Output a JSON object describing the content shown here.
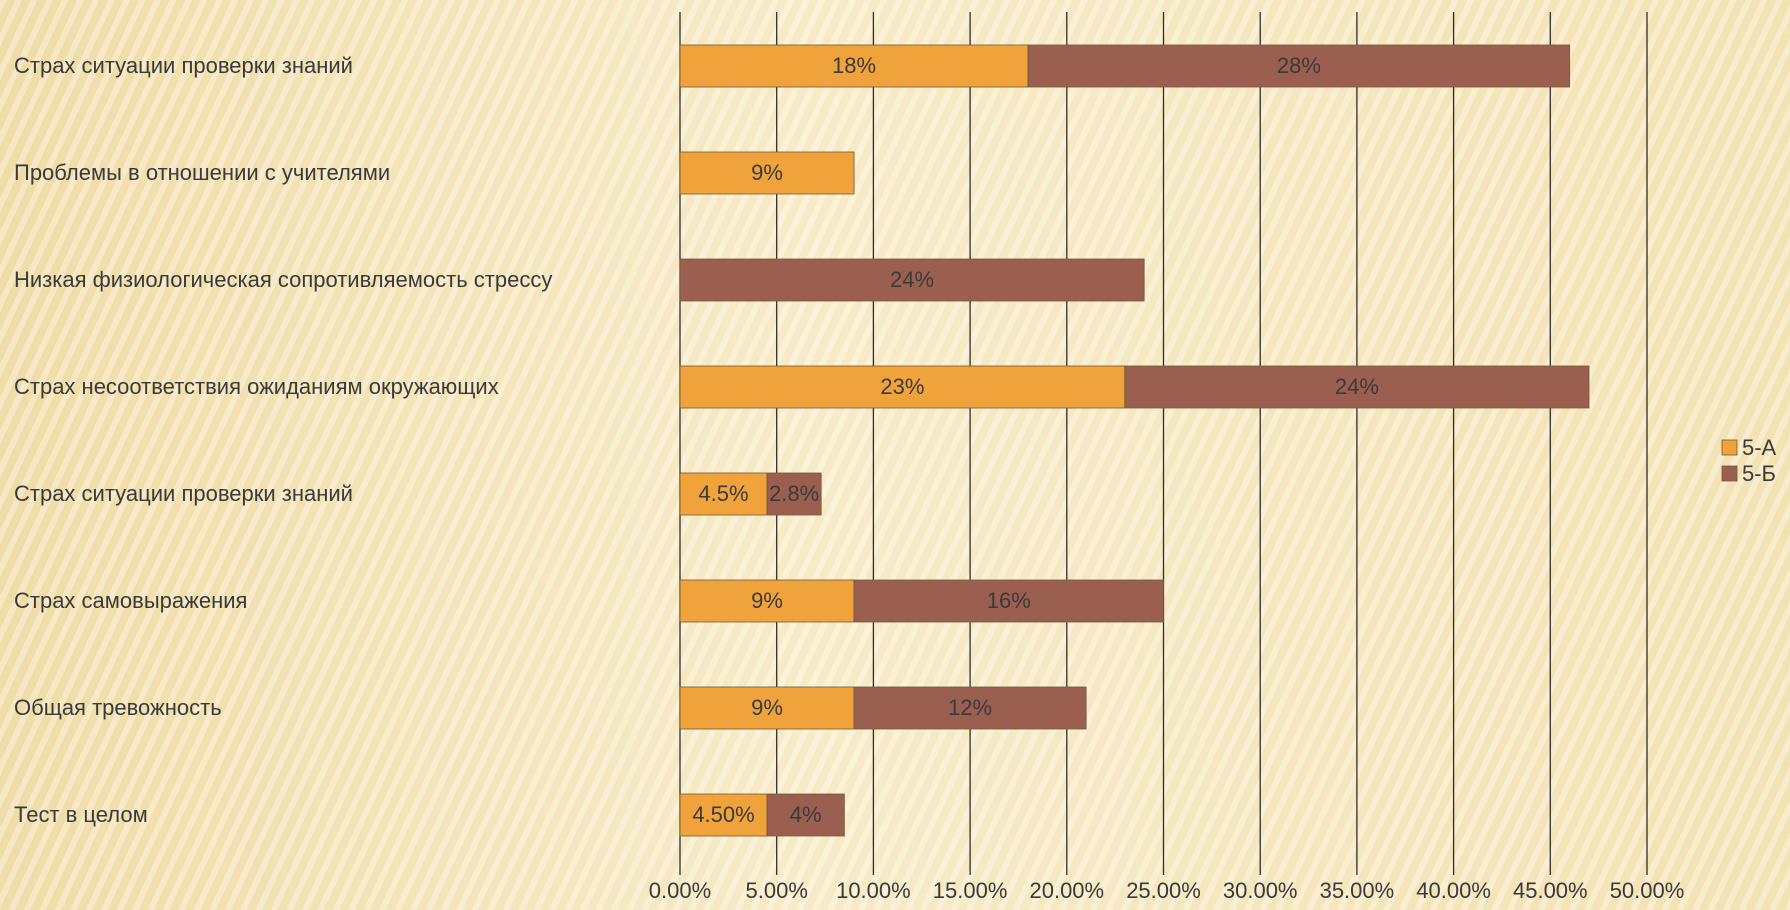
{
  "chart_data": {
    "type": "bar",
    "orientation": "horizontal",
    "stacked": true,
    "title": "",
    "xlabel": "",
    "ylabel": "",
    "xlim": [
      0,
      50
    ],
    "x_ticks": [
      "0.00%",
      "5.00%",
      "10.00%",
      "15.00%",
      "20.00%",
      "25.00%",
      "30.00%",
      "35.00%",
      "40.00%",
      "45.00%",
      "50.00%"
    ],
    "grid": true,
    "legend_position": "right",
    "categories": [
      "Страх ситуации проверки знаний",
      "Проблемы в отношении с учителями",
      "Низкая физиологическая сопротивляемость стрессу",
      "Страх несоответствия ожиданиям окружающих",
      "Страх ситуации проверки знаний",
      "Страх самовыражения",
      "Общая тревожность",
      "Тест в целом"
    ],
    "series": [
      {
        "name": "5-А",
        "color": "#f0a33a",
        "values": [
          18,
          9,
          0,
          23,
          4.5,
          9,
          9,
          4.5
        ],
        "labels": [
          "18%",
          "9%",
          "",
          "23%",
          "4.5%",
          "9%",
          "9%",
          "4.50%"
        ]
      },
      {
        "name": "5-Б",
        "color": "#9b5f4f",
        "values": [
          28,
          0,
          24,
          24,
          2.8,
          16,
          12,
          4
        ],
        "labels": [
          "28%",
          "",
          "24%",
          "24%",
          "2.8%",
          "16%",
          "12%",
          "4%"
        ]
      }
    ]
  }
}
